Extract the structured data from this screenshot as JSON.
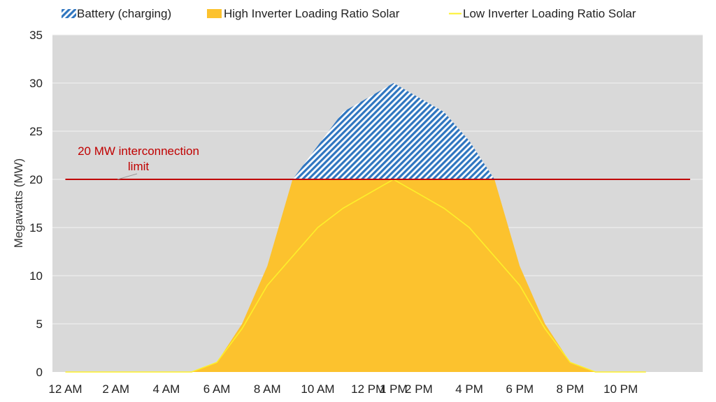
{
  "chart_data": {
    "type": "area",
    "ylabel": "Megawatts (MW)",
    "xlabel": "",
    "ylim": [
      0,
      35
    ],
    "yticks": [
      "0",
      "5",
      "10",
      "15",
      "20",
      "25",
      "30",
      "35"
    ],
    "x": [
      "12 AM",
      "1 AM",
      "2 AM",
      "3 AM",
      "4 AM",
      "5 AM",
      "6 AM",
      "7 AM",
      "8 AM",
      "9 AM",
      "10 AM",
      "11 AM",
      "12 PM",
      "1 PM",
      "2 PM",
      "3 PM",
      "4 PM",
      "5 PM",
      "6 PM",
      "7 PM",
      "8 PM",
      "9 PM",
      "10 PM",
      "11 PM"
    ],
    "xtick_labels": [
      "12 AM",
      "2 AM",
      "4 AM",
      "6 AM",
      "8 AM",
      "10 AM",
      "12 PM",
      "1 PM",
      "2 PM",
      "4 PM",
      "6 PM",
      "8 PM",
      "10 PM"
    ],
    "grid": true,
    "legend_position": "top",
    "series": [
      {
        "name": "Battery (charging)",
        "kind": "hatched-area",
        "values": [
          0,
          0,
          0,
          0,
          0,
          0,
          0,
          0,
          0,
          0,
          3.5,
          7,
          8.5,
          10,
          8.5,
          7,
          4,
          0,
          0,
          0,
          0,
          0,
          0,
          0
        ]
      },
      {
        "name": "High Inverter Loading Ratio Solar",
        "kind": "area",
        "values": [
          0,
          0,
          0,
          0,
          0,
          0,
          1,
          5,
          11,
          20,
          20,
          20,
          20,
          20,
          20,
          20,
          20,
          20,
          11,
          5,
          1,
          0,
          0,
          0
        ]
      },
      {
        "name": "Low Inverter Loading Ratio Solar",
        "kind": "line",
        "values": [
          0,
          0,
          0,
          0,
          0,
          0,
          1,
          4.5,
          9,
          12,
          15,
          17,
          18.5,
          20,
          18.5,
          17,
          15,
          12,
          9,
          4.5,
          1,
          0,
          0,
          0
        ]
      }
    ],
    "reference_line": {
      "value": 20,
      "label": "20 MW interconnection limit",
      "label_line1": "20 MW interconnection",
      "label_line2": "limit"
    },
    "colors": {
      "plot_background": "#d9d9d9",
      "grid": "#f2f2f2",
      "solar_high": "#fcc22e",
      "solar_low": "#fdf02a",
      "battery": "#2f76c0",
      "limit_line": "#c00000"
    }
  }
}
